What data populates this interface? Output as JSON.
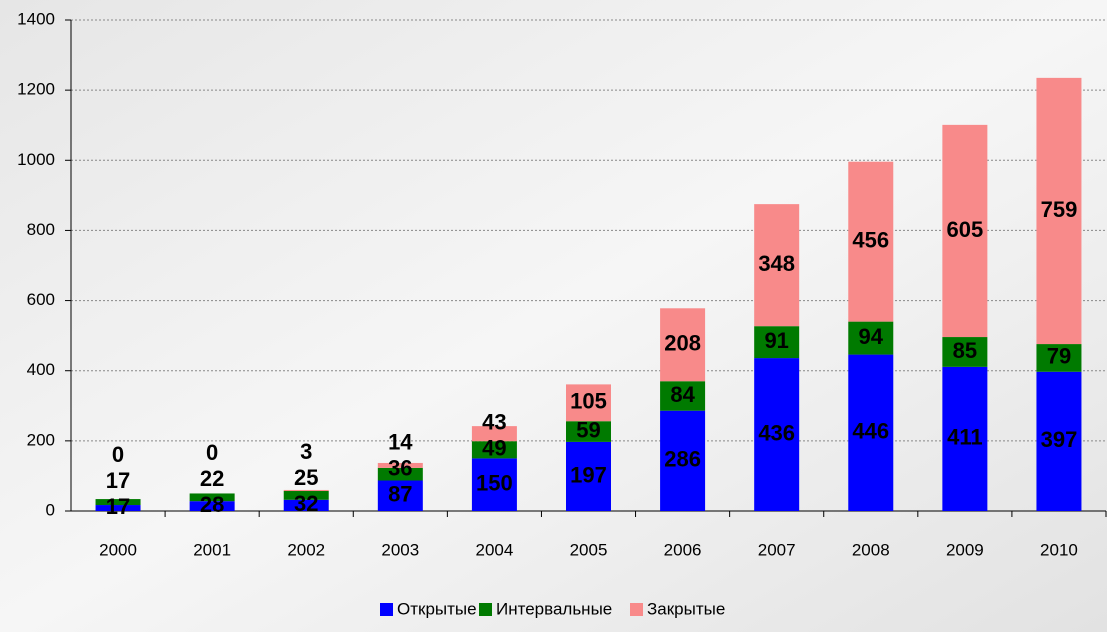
{
  "chart_data": {
    "type": "stacked_bar",
    "categories": [
      "2000",
      "2001",
      "2002",
      "2003",
      "2004",
      "2005",
      "2006",
      "2007",
      "2008",
      "2009",
      "2010"
    ],
    "series": [
      {
        "name": "Открытые",
        "color": "#0000ff",
        "values": [
          17,
          28,
          32,
          87,
          150,
          197,
          286,
          436,
          446,
          411,
          397
        ]
      },
      {
        "name": "Интервальные",
        "color": "#007a00",
        "values": [
          17,
          22,
          25,
          36,
          49,
          59,
          84,
          91,
          94,
          85,
          79
        ]
      },
      {
        "name": "Закрытые",
        "color": "#f88a8a",
        "values": [
          0,
          0,
          3,
          14,
          43,
          105,
          208,
          348,
          456,
          605,
          759
        ]
      }
    ],
    "ylim": [
      0,
      1400
    ],
    "yticks": [
      0,
      200,
      400,
      600,
      800,
      1000,
      1200,
      1400
    ],
    "grid": true
  }
}
